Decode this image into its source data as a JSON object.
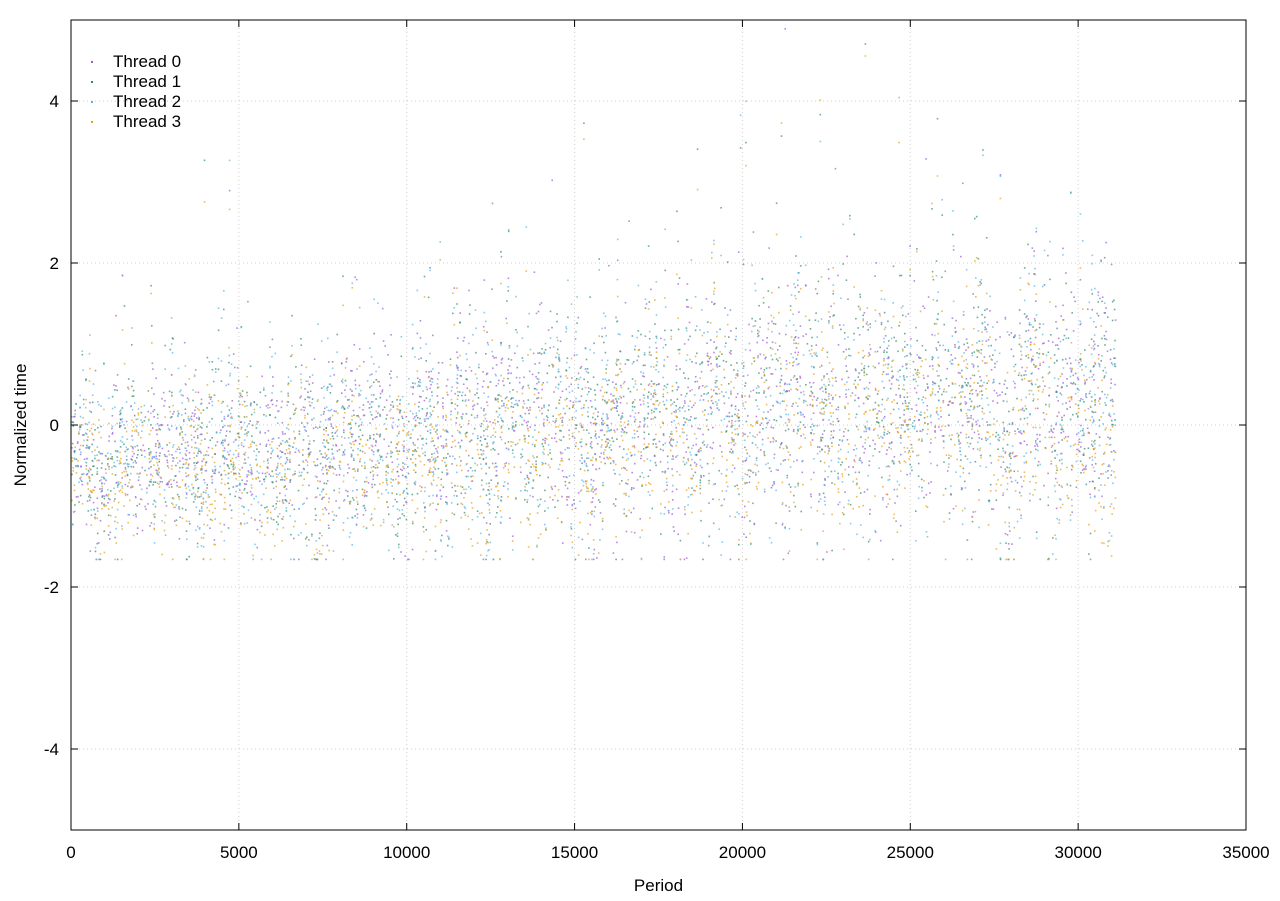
{
  "chart_data": {
    "type": "scatter",
    "title": "",
    "xlabel": "Period",
    "ylabel": "Normalized time",
    "xlim": [
      0,
      35000
    ],
    "ylim": [
      -5,
      5
    ],
    "x_ticks": [
      0,
      5000,
      10000,
      15000,
      20000,
      25000,
      30000,
      35000
    ],
    "x_tick_labels": [
      "0",
      "5000",
      "10000",
      "15000",
      "20000",
      "25000",
      "30000",
      "35000"
    ],
    "y_ticks": [
      -4,
      -2,
      0,
      2,
      4
    ],
    "y_tick_labels": [
      "-4",
      "-2",
      "0",
      "2",
      "4"
    ],
    "grid": true,
    "legend_position": "top-left",
    "x_data_range": [
      0,
      31100
    ],
    "series": [
      {
        "name": "Thread 0",
        "color": "#9b59d6",
        "approx_profile": [
          {
            "x": 0,
            "mean": -0.6,
            "spread": 0.5
          },
          {
            "x": 5000,
            "mean": -0.3,
            "spread": 0.6
          },
          {
            "x": 10000,
            "mean": -0.2,
            "spread": 0.7
          },
          {
            "x": 12500,
            "mean": 0.4,
            "spread": 0.8
          },
          {
            "x": 15000,
            "mean": -0.1,
            "spread": 0.8
          },
          {
            "x": 20000,
            "mean": 0.1,
            "spread": 0.9
          },
          {
            "x": 25000,
            "mean": 0.3,
            "spread": 0.9
          },
          {
            "x": 31000,
            "mean": 0.2,
            "spread": 0.9
          }
        ]
      },
      {
        "name": "Thread 1",
        "color": "#2e8b6f",
        "approx_profile": [
          {
            "x": 0,
            "mean": -0.5,
            "spread": 0.6
          },
          {
            "x": 5000,
            "mean": -0.3,
            "spread": 0.6
          },
          {
            "x": 10000,
            "mean": -0.3,
            "spread": 0.7
          },
          {
            "x": 15000,
            "mean": 0.0,
            "spread": 0.8
          },
          {
            "x": 20000,
            "mean": 0.3,
            "spread": 0.9
          },
          {
            "x": 25000,
            "mean": 0.4,
            "spread": 0.9
          },
          {
            "x": 31000,
            "mean": 0.3,
            "spread": 0.9
          }
        ]
      },
      {
        "name": "Thread 2",
        "color": "#56b4e9",
        "approx_profile": [
          {
            "x": 0,
            "mean": -0.4,
            "spread": 0.6
          },
          {
            "x": 5000,
            "mean": -0.3,
            "spread": 0.7
          },
          {
            "x": 10000,
            "mean": -0.2,
            "spread": 0.8
          },
          {
            "x": 15000,
            "mean": 0.0,
            "spread": 0.9
          },
          {
            "x": 20000,
            "mean": 0.2,
            "spread": 1.0
          },
          {
            "x": 25000,
            "mean": 0.3,
            "spread": 1.0
          },
          {
            "x": 31000,
            "mean": 0.2,
            "spread": 1.0
          }
        ]
      },
      {
        "name": "Thread 3",
        "color": "#e6a117",
        "approx_profile": [
          {
            "x": 0,
            "mean": -0.7,
            "spread": 0.5
          },
          {
            "x": 5000,
            "mean": -0.5,
            "spread": 0.6
          },
          {
            "x": 10000,
            "mean": -0.4,
            "spread": 0.6
          },
          {
            "x": 15000,
            "mean": -0.3,
            "spread": 0.7
          },
          {
            "x": 20000,
            "mean": 0.1,
            "spread": 0.9
          },
          {
            "x": 25000,
            "mean": 0.2,
            "spread": 0.9
          },
          {
            "x": 31000,
            "mean": -0.3,
            "spread": 0.8
          }
        ]
      }
    ]
  }
}
